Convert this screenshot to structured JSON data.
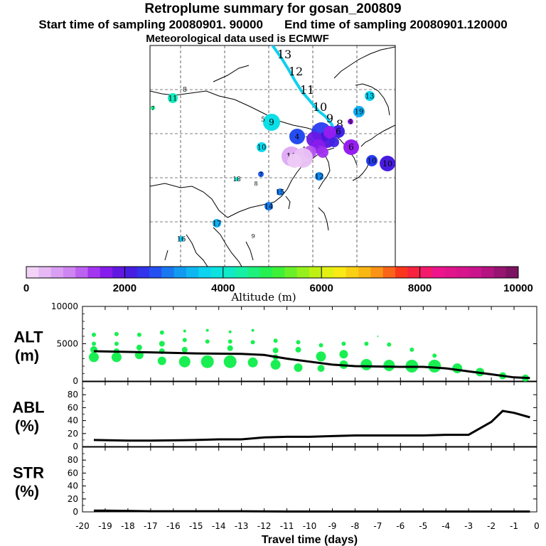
{
  "title": "Retroplume summary for gosan_200809",
  "start_label": "Start time of sampling 20080901. 90000",
  "end_label": "End time of sampling 20080901.120000",
  "met_label": "Meteorological data used is ECMWF",
  "colorbar": {
    "label": "Altitude (m)",
    "ticks": [
      "0",
      "2000",
      "4000",
      "6000",
      "8000",
      "10000"
    ],
    "range": [
      0,
      10000
    ]
  },
  "map": {
    "track_labels": [
      "13",
      "12",
      "11",
      "10",
      "9",
      "8"
    ],
    "markers": [
      {
        "label": "8",
        "alt": 200
      },
      {
        "label": "11",
        "alt": 4200
      },
      {
        "label": "7",
        "alt": 4500
      },
      {
        "label": "13",
        "alt": 3600
      },
      {
        "label": "19",
        "alt": 3300
      },
      {
        "label": "9",
        "alt": 3800
      },
      {
        "label": "5",
        "alt": 200
      },
      {
        "label": "4",
        "alt": 2600
      },
      {
        "label": "10",
        "alt": 3700
      },
      {
        "label": "6",
        "alt": 1500
      },
      {
        "label": "4",
        "alt": 1500
      },
      {
        "label": "10",
        "alt": 500
      },
      {
        "label": "1",
        "alt": 200
      },
      {
        "label": "6",
        "alt": 2200
      },
      {
        "label": "12",
        "alt": 3000
      },
      {
        "label": "10",
        "alt": 2500
      },
      {
        "label": "10",
        "alt": 2100
      },
      {
        "label": "18",
        "alt": 4000
      },
      {
        "label": "7",
        "alt": 2700
      },
      {
        "label": "8",
        "alt": 200
      },
      {
        "label": "15",
        "alt": 2900
      },
      {
        "label": "14",
        "alt": 2900
      },
      {
        "label": "17",
        "alt": 3300
      },
      {
        "label": "16",
        "alt": 3500
      },
      {
        "label": "9",
        "alt": 100
      }
    ]
  },
  "chart_data": [
    {
      "type": "scatter+line",
      "panel": "ALT",
      "ylabel_line1": "ALT",
      "ylabel_line2": "(m)",
      "ylim": [
        0,
        10000
      ],
      "yticks": [
        "10000",
        "5000",
        "0"
      ],
      "xlim": [
        -20,
        0
      ],
      "line": {
        "name": "mean altitude",
        "x": [
          -19.5,
          -17,
          -15,
          -13,
          -12,
          -11,
          -10,
          -9,
          -8,
          -7,
          -6,
          -5,
          -4,
          -3,
          -2,
          -1,
          -0.3
        ],
        "y": [
          4000,
          3850,
          3700,
          3650,
          3500,
          3000,
          2600,
          2200,
          2000,
          1950,
          1900,
          1900,
          1700,
          1300,
          900,
          500,
          400
        ]
      },
      "dots": {
        "name": "particle altitudes",
        "x": [
          -19.5,
          -19.5,
          -19.5,
          -19.5,
          -18.5,
          -18.5,
          -18.5,
          -18.5,
          -17.5,
          -17.5,
          -17.5,
          -16.5,
          -16.5,
          -16.5,
          -16.5,
          -15.5,
          -15.5,
          -15.5,
          -15.5,
          -14.5,
          -14.5,
          -14.5,
          -13.5,
          -13.5,
          -13.5,
          -13.5,
          -12.5,
          -12.5,
          -12.5,
          -11.5,
          -11.5,
          -11.5,
          -11.5,
          -10.5,
          -10.5,
          -10.5,
          -9.5,
          -9.5,
          -9.5,
          -8.5,
          -8.5,
          -8.5,
          -7.5,
          -7.5,
          -6.5,
          -6.5,
          -5.5,
          -5.5,
          -4.5,
          -4.5,
          -3.5,
          -2.5,
          -1.5,
          -0.5
        ],
        "y": [
          6200,
          5000,
          4200,
          3200,
          6300,
          5000,
          4000,
          3200,
          6200,
          4500,
          3500,
          6500,
          5000,
          4000,
          2700,
          6700,
          5500,
          4200,
          2600,
          6800,
          5300,
          2600,
          6600,
          5300,
          4400,
          2600,
          6800,
          5200,
          2500,
          5400,
          4100,
          3200,
          2200,
          5200,
          4200,
          1800,
          4800,
          3300,
          1700,
          5000,
          3600,
          2200,
          5000,
          2200,
          4900,
          2100,
          4200,
          2000,
          3400,
          2000,
          1700,
          1200,
          700,
          400
        ],
        "sizes": [
          3,
          3,
          5,
          7,
          3,
          3,
          4,
          7,
          3,
          4,
          6,
          3,
          4,
          4,
          6,
          2,
          3,
          4,
          8,
          2,
          3,
          9,
          2,
          3,
          4,
          9,
          2,
          3,
          7,
          3,
          4,
          4,
          7,
          3,
          4,
          6,
          3,
          7,
          5,
          3,
          6,
          6,
          3,
          8,
          3,
          8,
          3,
          9,
          3,
          9,
          7,
          6,
          5,
          5
        ]
      },
      "extra_dot": {
        "x": -7,
        "y": 6000,
        "size": 1
      }
    },
    {
      "type": "line",
      "panel": "ABL",
      "ylabel_line1": "ABL",
      "ylabel_line2": "(%)",
      "ylim": [
        0,
        100
      ],
      "yticks": [
        "80",
        "60",
        "40",
        "20",
        "0"
      ],
      "xlim": [
        -20,
        0
      ],
      "x": [
        -19.5,
        -18,
        -17,
        -16,
        -15,
        -14,
        -13,
        -12,
        -11,
        -10,
        -9,
        -8,
        -7,
        -6,
        -5,
        -4,
        -3,
        -2,
        -1.5,
        -1,
        -0.3
      ],
      "y": [
        10,
        9,
        9,
        9.5,
        10,
        11,
        11,
        14,
        15,
        15,
        16,
        17,
        17,
        17,
        17,
        18,
        18,
        38,
        55,
        52,
        45
      ]
    },
    {
      "type": "line",
      "panel": "STR",
      "ylabel_line1": "STR",
      "ylabel_line2": "(%)",
      "ylim": [
        0,
        100
      ],
      "yticks": [
        "80",
        "60",
        "40",
        "20",
        "0"
      ],
      "xlim": [
        -20,
        0
      ],
      "x": [
        -19.5,
        -19,
        -18,
        -17,
        -15,
        -13,
        -11,
        -9,
        -7,
        -5,
        -3,
        -1,
        -0.3
      ],
      "y": [
        2,
        2,
        1.5,
        1,
        1,
        1,
        0.5,
        0.5,
        0.5,
        0.5,
        0.5,
        0.5,
        0.5
      ]
    },
    {
      "type": "axis",
      "xlabel": "Travel time (days)",
      "xticks": [
        "-20",
        "-19",
        "-18",
        "-17",
        "-16",
        "-15",
        "-14",
        "-13",
        "-12",
        "-11",
        "-10",
        "-9",
        "-8",
        "-7",
        "-6",
        "-5",
        "-4",
        "-3",
        "-2",
        "-1",
        "0"
      ]
    }
  ],
  "colors": {
    "dots": "#19ef52",
    "line": "#000000",
    "track": "#0fd0ef"
  }
}
